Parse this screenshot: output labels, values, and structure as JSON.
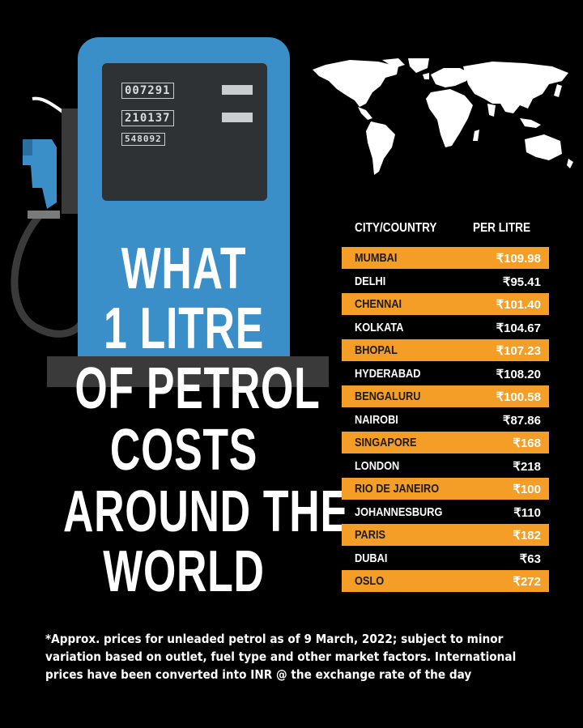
{
  "title": {
    "line1": "WHAT",
    "line2": "1 LITRE",
    "line3": "OF PETROL",
    "line4": "COSTS",
    "line5": "AROUND THE",
    "line6": "WORLD"
  },
  "pump": {
    "display1": "007291",
    "display2": "210137",
    "display3": "548092"
  },
  "table": {
    "header_city": "CITY/COUNTRY",
    "header_price": "PER LITRE",
    "rows": [
      {
        "city": "MUMBAI",
        "price": "₹109.98"
      },
      {
        "city": "DELHI",
        "price": "₹95.41"
      },
      {
        "city": "CHENNAI",
        "price": "₹101.40"
      },
      {
        "city": "KOLKATA",
        "price": "₹104.67"
      },
      {
        "city": "BHOPAL",
        "price": "₹107.23"
      },
      {
        "city": "HYDERABAD",
        "price": "₹108.20"
      },
      {
        "city": "BENGALURU",
        "price": "₹100.58"
      },
      {
        "city": "NAIROBI",
        "price": "₹87.86"
      },
      {
        "city": "SINGAPORE",
        "price": "₹168"
      },
      {
        "city": "LONDON",
        "price": "₹218"
      },
      {
        "city": "RIO DE JANEIRO",
        "price": "₹100"
      },
      {
        "city": "JOHANNESBURG",
        "price": "₹110"
      },
      {
        "city": "PARIS",
        "price": "₹182"
      },
      {
        "city": "DUBAI",
        "price": "₹63"
      },
      {
        "city": "OSLO",
        "price": "₹272"
      }
    ]
  },
  "footnote": "*Approx. prices for unleaded petrol as of 9 March, 2022; subject to minor variation based on outlet, fuel type and other market factors. International prices have been converted into INR @ the exchange rate of the day",
  "colors": {
    "background": "#000000",
    "pump_blue": "#3b8fc9",
    "highlight_orange": "#f49d27",
    "map_white": "#ffffff"
  },
  "icons": [
    "fuel-pump-icon",
    "fuel-nozzle-icon",
    "world-map-icon"
  ]
}
